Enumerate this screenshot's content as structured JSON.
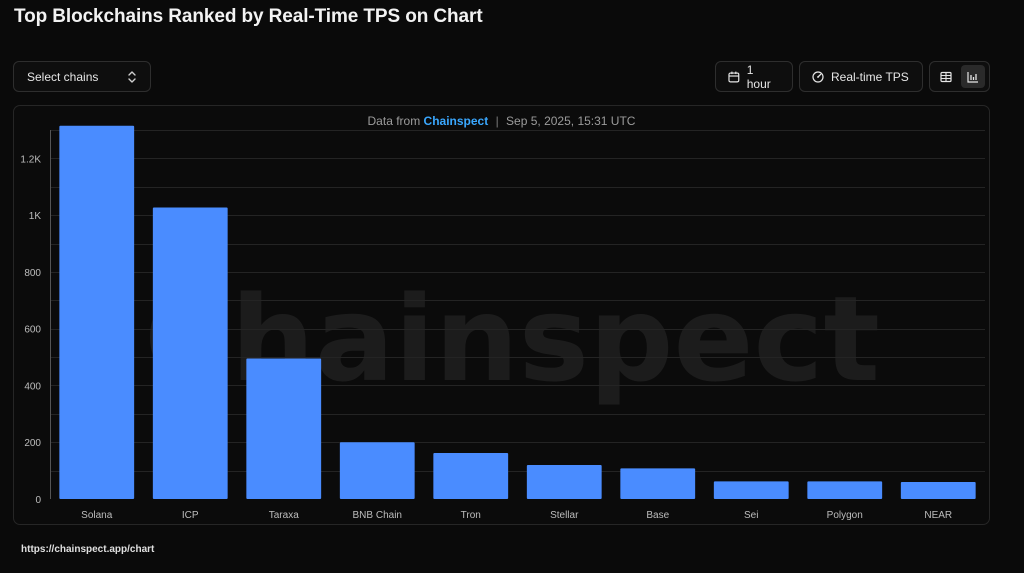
{
  "header": {
    "title": "Top Blockchains Ranked by Real-Time TPS on Chart"
  },
  "controls": {
    "select_chains": "Select chains",
    "time_range": "1 hour",
    "metric": "Real-time TPS",
    "view_modes": [
      "table",
      "chart"
    ],
    "active_view": "chart"
  },
  "source": {
    "prefix": "Data from",
    "brand": "Chainspect",
    "separator": "|",
    "timestamp": "Sep 5, 2025, 15:31 UTC"
  },
  "watermark": "Chainspect",
  "footer": {
    "url": "https://chainspect.app/chart"
  },
  "colors": {
    "bar": "#4a8cff",
    "brand": "#3aa8ff",
    "background": "#0a0a0a"
  },
  "chart_data": {
    "type": "bar",
    "categories": [
      "Solana",
      "ICP",
      "Taraxa",
      "BNB Chain",
      "Tron",
      "Stellar",
      "Base",
      "Sei",
      "Polygon",
      "NEAR"
    ],
    "values": [
      1315,
      1027,
      495,
      200,
      162,
      120,
      108,
      62,
      62,
      60
    ],
    "ylim": [
      0,
      1300
    ],
    "yticks": [
      0,
      200,
      400,
      600,
      800,
      1000,
      1200
    ],
    "ytick_labels": [
      "0",
      "200",
      "400",
      "600",
      "800",
      "1K",
      "1.2K"
    ],
    "grid": true,
    "legend": "none"
  }
}
